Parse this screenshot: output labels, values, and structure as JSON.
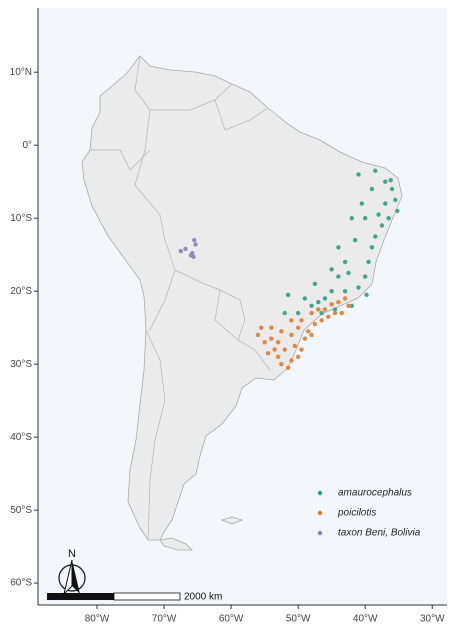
{
  "map": {
    "xlim": [
      -88.8,
      -27.8
    ],
    "ylim": [
      -63,
      18.8
    ],
    "xticks": [
      {
        "value": -80,
        "label": "80°W"
      },
      {
        "value": -70,
        "label": "70°W"
      },
      {
        "value": -60,
        "label": "60°W"
      },
      {
        "value": -50,
        "label": "50°W"
      },
      {
        "value": -40,
        "label": "40°W"
      },
      {
        "value": -30,
        "label": "30°W"
      }
    ],
    "yticks": [
      {
        "value": 10,
        "label": "10°N"
      },
      {
        "value": 0,
        "label": "0°"
      },
      {
        "value": -10,
        "label": "10°S"
      },
      {
        "value": -20,
        "label": "20°S"
      },
      {
        "value": -30,
        "label": "30°S"
      },
      {
        "value": -40,
        "label": "40°S"
      },
      {
        "value": -50,
        "label": "50°S"
      },
      {
        "value": -60,
        "label": "60°S"
      }
    ],
    "series": [
      {
        "name": "amaurocephalus",
        "color": "#2ba27e",
        "points": [
          [
            -38.5,
            -3.5
          ],
          [
            -37,
            -5
          ],
          [
            -36,
            -6
          ],
          [
            -35.5,
            -7.5
          ],
          [
            -35.2,
            -9
          ],
          [
            -36.5,
            -10
          ],
          [
            -37.5,
            -11
          ],
          [
            -38.5,
            -12.5
          ],
          [
            -39,
            -14
          ],
          [
            -39.5,
            -16
          ],
          [
            -40,
            -18
          ],
          [
            -41,
            -19.5
          ],
          [
            -40.5,
            -8
          ],
          [
            -42,
            -10
          ],
          [
            -41.5,
            -13
          ],
          [
            -43,
            -16
          ],
          [
            -44,
            -18
          ],
          [
            -45,
            -20
          ],
          [
            -46,
            -21
          ],
          [
            -47,
            -21.5
          ],
          [
            -48,
            -22
          ],
          [
            -49,
            -21
          ],
          [
            -50,
            -23
          ],
          [
            -43,
            -20
          ],
          [
            -42,
            -22
          ],
          [
            -44.5,
            -22.5
          ],
          [
            -46.5,
            -23
          ],
          [
            -39,
            -6
          ],
          [
            -40,
            -10
          ],
          [
            -41,
            -4
          ],
          [
            -37,
            -8
          ],
          [
            -38,
            -9.5
          ],
          [
            -44,
            -14
          ],
          [
            -45,
            -17
          ],
          [
            -47.5,
            -19
          ],
          [
            -51.5,
            -20.5
          ],
          [
            -52,
            -23
          ],
          [
            -39.8,
            -20.5
          ],
          [
            -42.5,
            -17.5
          ],
          [
            -36.2,
            -4.8
          ]
        ]
      },
      {
        "name": "poicilotis",
        "color": "#e07a2c",
        "points": [
          [
            -42.5,
            -22
          ],
          [
            -43.5,
            -23
          ],
          [
            -44.5,
            -23
          ],
          [
            -45.5,
            -23.5
          ],
          [
            -46.5,
            -24
          ],
          [
            -47.5,
            -24.5
          ],
          [
            -48.5,
            -25.5
          ],
          [
            -49,
            -26.5
          ],
          [
            -49.5,
            -28
          ],
          [
            -50,
            -29
          ],
          [
            -51,
            -29.5
          ],
          [
            -52,
            -28
          ],
          [
            -53,
            -27
          ],
          [
            -54,
            -26.5
          ],
          [
            -55,
            -27
          ],
          [
            -55.5,
            -25
          ],
          [
            -54,
            -25
          ],
          [
            -52.5,
            -25.5
          ],
          [
            -51,
            -26
          ],
          [
            -50,
            -25
          ],
          [
            -49.5,
            -24
          ],
          [
            -48,
            -23
          ],
          [
            -47,
            -22.5
          ],
          [
            -46,
            -22.5
          ],
          [
            -45,
            -21.8
          ],
          [
            -44,
            -21.5
          ],
          [
            -53,
            -29
          ],
          [
            -51.5,
            -30.5
          ],
          [
            -52.5,
            -30
          ],
          [
            -50.5,
            -27.5
          ],
          [
            -48,
            -26
          ],
          [
            -53.5,
            -28
          ],
          [
            -54.5,
            -28.5
          ],
          [
            -56,
            -26
          ],
          [
            -51,
            -24
          ],
          [
            -43,
            -21
          ]
        ]
      },
      {
        "name": "taxon Beni, Bolivia",
        "color": "#8a80b8",
        "points": [
          [
            -67.5,
            -14.5
          ],
          [
            -66.8,
            -14.2
          ],
          [
            -65.5,
            -13
          ],
          [
            -65.3,
            -13.6
          ],
          [
            -65.8,
            -14.8
          ],
          [
            -65.6,
            -15.3
          ],
          [
            -66,
            -15.1
          ]
        ]
      }
    ],
    "scale_label": "2000 km",
    "north_label": "N"
  }
}
